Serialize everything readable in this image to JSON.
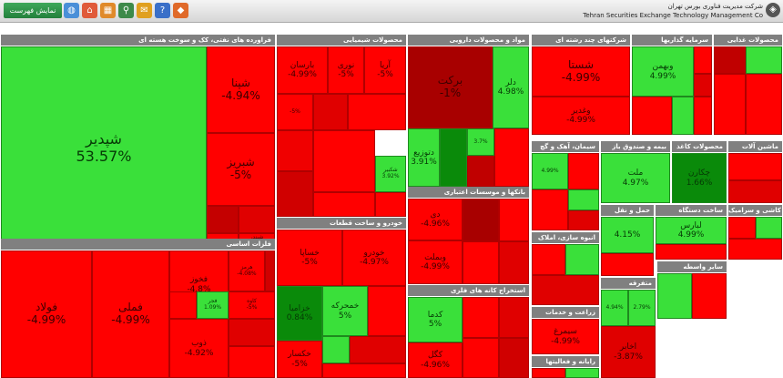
{
  "toolbar": {
    "show_list_label": "نمایش فهرست",
    "icons": [
      {
        "name": "globe-icon",
        "glyph": "◍",
        "color": "#4a8fd8"
      },
      {
        "name": "home-icon",
        "glyph": "⌂",
        "color": "#e05a3a"
      },
      {
        "name": "grid-icon",
        "glyph": "▦",
        "color": "#e08a2a"
      },
      {
        "name": "search-icon",
        "glyph": "⚲",
        "color": "#3d8a4a"
      },
      {
        "name": "chat-icon",
        "glyph": "✉",
        "color": "#e0a020"
      },
      {
        "name": "help-icon",
        "glyph": "?",
        "color": "#3a6fc8"
      },
      {
        "name": "tag-icon",
        "glyph": "◆",
        "color": "#e06a2a"
      }
    ]
  },
  "header": {
    "company_fa": "شرکت مدیریت فناوری بورس تهران",
    "company_en": "Tehran Securities Exchange Technology Management Co"
  },
  "colors": {
    "deep_red": "#9a0000",
    "red": "#ff0000",
    "green": "#00c000",
    "light_green": "#3ae03a",
    "dark_green": "#0a7a0a",
    "header_gray": "#808080"
  },
  "sections": [
    {
      "id": "oil",
      "title": "فراورده های نفتی، کک و سوخت هسته ای",
      "tiles": [
        {
          "sym": "شپدیر",
          "pct": "53.57%",
          "color": "#3ae03a"
        },
        {
          "sym": "شپنا",
          "pct": "-4.94%",
          "color": "#ff0000"
        },
        {
          "sym": "شبریز",
          "pct": "-5%",
          "color": "#ff0000"
        },
        {
          "sym": "",
          "pct": "",
          "color": "#c40000"
        },
        {
          "sym": "",
          "pct": "",
          "color": "#e00000"
        },
        {
          "sym": "",
          "pct": "",
          "color": "#ff0000"
        },
        {
          "sym": "شبندر",
          "pct": "-4.99%",
          "color": "#ff0000"
        },
        {
          "sym": "",
          "pct": "",
          "color": "#e80000"
        }
      ]
    },
    {
      "id": "metal",
      "title": "فلزات اساسی",
      "tiles": [
        {
          "sym": "فولاد",
          "pct": "-4.99%",
          "color": "#ff0000"
        },
        {
          "sym": "فملی",
          "pct": "-4.99%",
          "color": "#ff0000"
        },
        {
          "sym": "فخوز",
          "pct": "-4.8%",
          "color": "#ff0000"
        },
        {
          "sym": "هرمز",
          "pct": "-4.08%",
          "color": "#ff0000"
        },
        {
          "sym": "کاوه",
          "pct": "-5%",
          "color": "#ff0000"
        },
        {
          "sym": "ذوب",
          "pct": "-4.92%",
          "color": "#ff0000"
        },
        {
          "sym": "فجر",
          "pct": "1.09%",
          "color": "#3ae03a"
        },
        {
          "sym": "",
          "pct": "",
          "color": "#e00000"
        },
        {
          "sym": "",
          "pct": "",
          "color": "#ff0000"
        },
        {
          "sym": "",
          "pct": "",
          "color": "#d00000"
        },
        {
          "sym": "",
          "pct": "",
          "color": "#ff0000"
        },
        {
          "sym": "",
          "pct": "",
          "color": "#f00000"
        }
      ]
    },
    {
      "id": "chem",
      "title": "محصولات شیمیایی",
      "tiles": [
        {
          "sym": "بارسان",
          "pct": "-4.99%",
          "color": "#ff0000"
        },
        {
          "sym": "نوری",
          "pct": "-5%",
          "color": "#ff0000"
        },
        {
          "sym": "آریا",
          "pct": "-5%",
          "color": "#ff0000"
        },
        {
          "sym": "شکبیر",
          "pct": "3.92%",
          "color": "#3ae03a"
        },
        {
          "sym": "",
          "pct": "-5%",
          "color": "#ff0000"
        },
        {
          "sym": "",
          "pct": "",
          "color": "#e00000"
        },
        {
          "sym": "",
          "pct": "",
          "color": "#ff0000"
        },
        {
          "sym": "",
          "pct": "",
          "color": "#f00000"
        },
        {
          "sym": "",
          "pct": "",
          "color": "#ff0000"
        },
        {
          "sym": "",
          "pct": "",
          "color": "#d00000"
        },
        {
          "sym": "",
          "pct": "",
          "color": "#ff0000"
        },
        {
          "sym": "",
          "pct": "",
          "color": "#ff0000"
        }
      ]
    },
    {
      "id": "auto",
      "title": "خودرو و ساخت قطعات",
      "tiles": [
        {
          "sym": "خساپا",
          "pct": "-5%",
          "color": "#ff0000"
        },
        {
          "sym": "خودرو",
          "pct": "-4.97%",
          "color": "#ff0000"
        },
        {
          "sym": "خزامیا",
          "pct": "0.84%",
          "color": "#0a8a0a"
        },
        {
          "sym": "خمحرکه",
          "pct": "5%",
          "color": "#3ae03a"
        },
        {
          "sym": "خکسار",
          "pct": "-5%",
          "color": "#ff0000"
        },
        {
          "sym": "",
          "pct": "",
          "color": "#3ae03a"
        },
        {
          "sym": "",
          "pct": "",
          "color": "#ff0000"
        },
        {
          "sym": "",
          "pct": "",
          "color": "#e00000"
        },
        {
          "sym": "",
          "pct": "",
          "color": "#ff0000"
        },
        {
          "sym": "",
          "pct": "",
          "color": "#d00000"
        }
      ]
    },
    {
      "id": "pharma",
      "title": "مواد و محصولات دارویی",
      "tiles": [
        {
          "sym": "برکت",
          "pct": "-1%",
          "color": "#a80000"
        },
        {
          "sym": "دلر",
          "pct": "4.98%",
          "color": "#3ae03a"
        },
        {
          "sym": "دتوزیع",
          "pct": "3.91%",
          "color": "#3ae03a"
        },
        {
          "sym": "",
          "pct": "",
          "color": "#0a8a0a"
        },
        {
          "sym": "",
          "pct": "3.7%",
          "color": "#3ae03a"
        },
        {
          "sym": "",
          "pct": "",
          "color": "#c00000"
        },
        {
          "sym": "",
          "pct": "",
          "color": "#ff0000"
        },
        {
          "sym": "",
          "pct": "",
          "color": "#3ae03a"
        }
      ]
    },
    {
      "id": "bank",
      "title": "بانکها و موسسات اعتباری",
      "tiles": [
        {
          "sym": "دی",
          "pct": "-4.96%",
          "color": "#ff0000"
        },
        {
          "sym": "وبملت",
          "pct": "-4.99%",
          "color": "#ff0000"
        },
        {
          "sym": "",
          "pct": "",
          "color": "#a80000"
        },
        {
          "sym": "",
          "pct": "",
          "color": "#ff0000"
        },
        {
          "sym": "",
          "pct": "",
          "color": "#ff0000"
        },
        {
          "sym": "",
          "pct": "",
          "color": "#e00000"
        }
      ]
    },
    {
      "id": "mine",
      "title": "استخراج کانه های فلزی",
      "tiles": [
        {
          "sym": "کدما",
          "pct": "5%",
          "color": "#3ae03a"
        },
        {
          "sym": "کگل",
          "pct": "-4.96%",
          "color": "#ff0000"
        },
        {
          "sym": "",
          "pct": "",
          "color": "#ff0000"
        },
        {
          "sym": "",
          "pct": "",
          "color": "#e00000"
        },
        {
          "sym": "",
          "pct": "",
          "color": "#ff0000"
        },
        {
          "sym": "",
          "pct": "",
          "color": "#d00000"
        }
      ]
    },
    {
      "id": "multi",
      "title": "شرکتهای چند رشته ای",
      "tiles": [
        {
          "sym": "شستا",
          "pct": "-4.99%",
          "color": "#ff0000"
        },
        {
          "sym": "وغدیر",
          "pct": "-4.99%",
          "color": "#ff0000"
        },
        {
          "sym": "",
          "pct": "",
          "color": "#e00000"
        },
        {
          "sym": "",
          "pct": "",
          "color": "#ff0000"
        }
      ]
    },
    {
      "id": "invest",
      "title": "سرمایه گذاریها",
      "tiles": [
        {
          "sym": "وبهمن",
          "pct": "4.99%",
          "color": "#3ae03a"
        },
        {
          "sym": "",
          "pct": "",
          "color": "#ff0000"
        },
        {
          "sym": "",
          "pct": "",
          "color": "#e00000"
        },
        {
          "sym": "",
          "pct": "",
          "color": "#ff0000"
        },
        {
          "sym": "",
          "pct": "",
          "color": "#3ae03a"
        },
        {
          "sym": "",
          "pct": "",
          "color": "#ff0000"
        }
      ]
    },
    {
      "id": "food",
      "title": "محصولات غذایی",
      "tiles": [
        {
          "sym": "",
          "pct": "",
          "color": "#c00000"
        },
        {
          "sym": "",
          "pct": "",
          "color": "#3ae03a"
        },
        {
          "sym": "",
          "pct": "",
          "color": "#ff0000"
        },
        {
          "sym": "",
          "pct": "",
          "color": "#ff0000"
        }
      ]
    },
    {
      "id": "cement",
      "title": "سیمان، آهک و گچ",
      "tiles": [
        {
          "sym": "",
          "pct": "4.99%",
          "color": "#3ae03a"
        },
        {
          "sym": "",
          "pct": "",
          "color": "#ff0000"
        },
        {
          "sym": "",
          "pct": "",
          "color": "#ff0000"
        },
        {
          "sym": "",
          "pct": "",
          "color": "#3ae03a"
        },
        {
          "sym": "",
          "pct": "",
          "color": "#e00000"
        }
      ]
    },
    {
      "id": "insure",
      "title": "بیمه و صندوق باز",
      "tiles": [
        {
          "sym": "ملت",
          "pct": "4.97%",
          "color": "#3ae03a"
        },
        {
          "sym": "",
          "pct": "",
          "color": "#ff0000"
        }
      ]
    },
    {
      "id": "paper",
      "title": "محصولات کاغذ",
      "tiles": [
        {
          "sym": "چکارن",
          "pct": "1.66%",
          "color": "#0a8a0a"
        },
        {
          "sym": "",
          "pct": "",
          "color": "#ff0000"
        }
      ]
    },
    {
      "id": "machine",
      "title": "ماشین آلات",
      "tiles": [
        {
          "sym": "",
          "pct": "",
          "color": "#ff0000"
        },
        {
          "sym": "",
          "pct": "",
          "color": "#e00000"
        }
      ]
    },
    {
      "id": "tile",
      "title": "کاشی و سرامیک",
      "tiles": [
        {
          "sym": "",
          "pct": "",
          "color": "#ff0000"
        },
        {
          "sym": "",
          "pct": "",
          "color": "#3ae03a"
        },
        {
          "sym": "",
          "pct": "",
          "color": "#ff0000"
        }
      ]
    },
    {
      "id": "transport",
      "title": "حمل و نقل",
      "tiles": [
        {
          "sym": "",
          "pct": "4.15%",
          "color": "#3ae03a"
        },
        {
          "sym": "",
          "pct": "",
          "color": "#ff0000"
        }
      ]
    },
    {
      "id": "build",
      "title": "انبوه سازی، املاک",
      "tiles": [
        {
          "sym": "",
          "pct": "",
          "color": "#ff0000"
        },
        {
          "sym": "",
          "pct": "",
          "color": "#3ae03a"
        },
        {
          "sym": "",
          "pct": "",
          "color": "#e00000"
        }
      ]
    },
    {
      "id": "const",
      "title": "ساخت دستگاه",
      "tiles": [
        {
          "sym": "لبارس",
          "pct": "4.99%",
          "color": "#3ae03a"
        },
        {
          "sym": "",
          "pct": "",
          "color": "#ff0000"
        }
      ]
    },
    {
      "id": "utilities",
      "title": "زراعت و خدمات",
      "tiles": [
        {
          "sym": "سیمرغ",
          "pct": "-4.99%",
          "color": "#ff0000"
        },
        {
          "sym": "",
          "pct": "",
          "color": "#3ae03a"
        }
      ]
    },
    {
      "id": "misc",
      "title": "متفرقه",
      "tiles": [
        {
          "sym": "اخابر",
          "pct": "-3.87%",
          "color": "#e00000"
        },
        {
          "sym": "",
          "pct": "2.79%",
          "color": "#3ae03a"
        },
        {
          "sym": "",
          "pct": "4.94%",
          "color": "#3ae03a"
        }
      ]
    },
    {
      "id": "other",
      "title": "رایانه و فعالیتها",
      "tiles": [
        {
          "sym": "",
          "pct": "",
          "color": "#ff0000"
        },
        {
          "sym": "",
          "pct": "",
          "color": "#3ae03a"
        }
      ]
    },
    {
      "id": "tech",
      "title": "سایر واسطه",
      "tiles": [
        {
          "sym": "",
          "pct": "",
          "color": "#3ae03a"
        },
        {
          "sym": "",
          "pct": "",
          "color": "#ff0000"
        }
      ]
    }
  ]
}
